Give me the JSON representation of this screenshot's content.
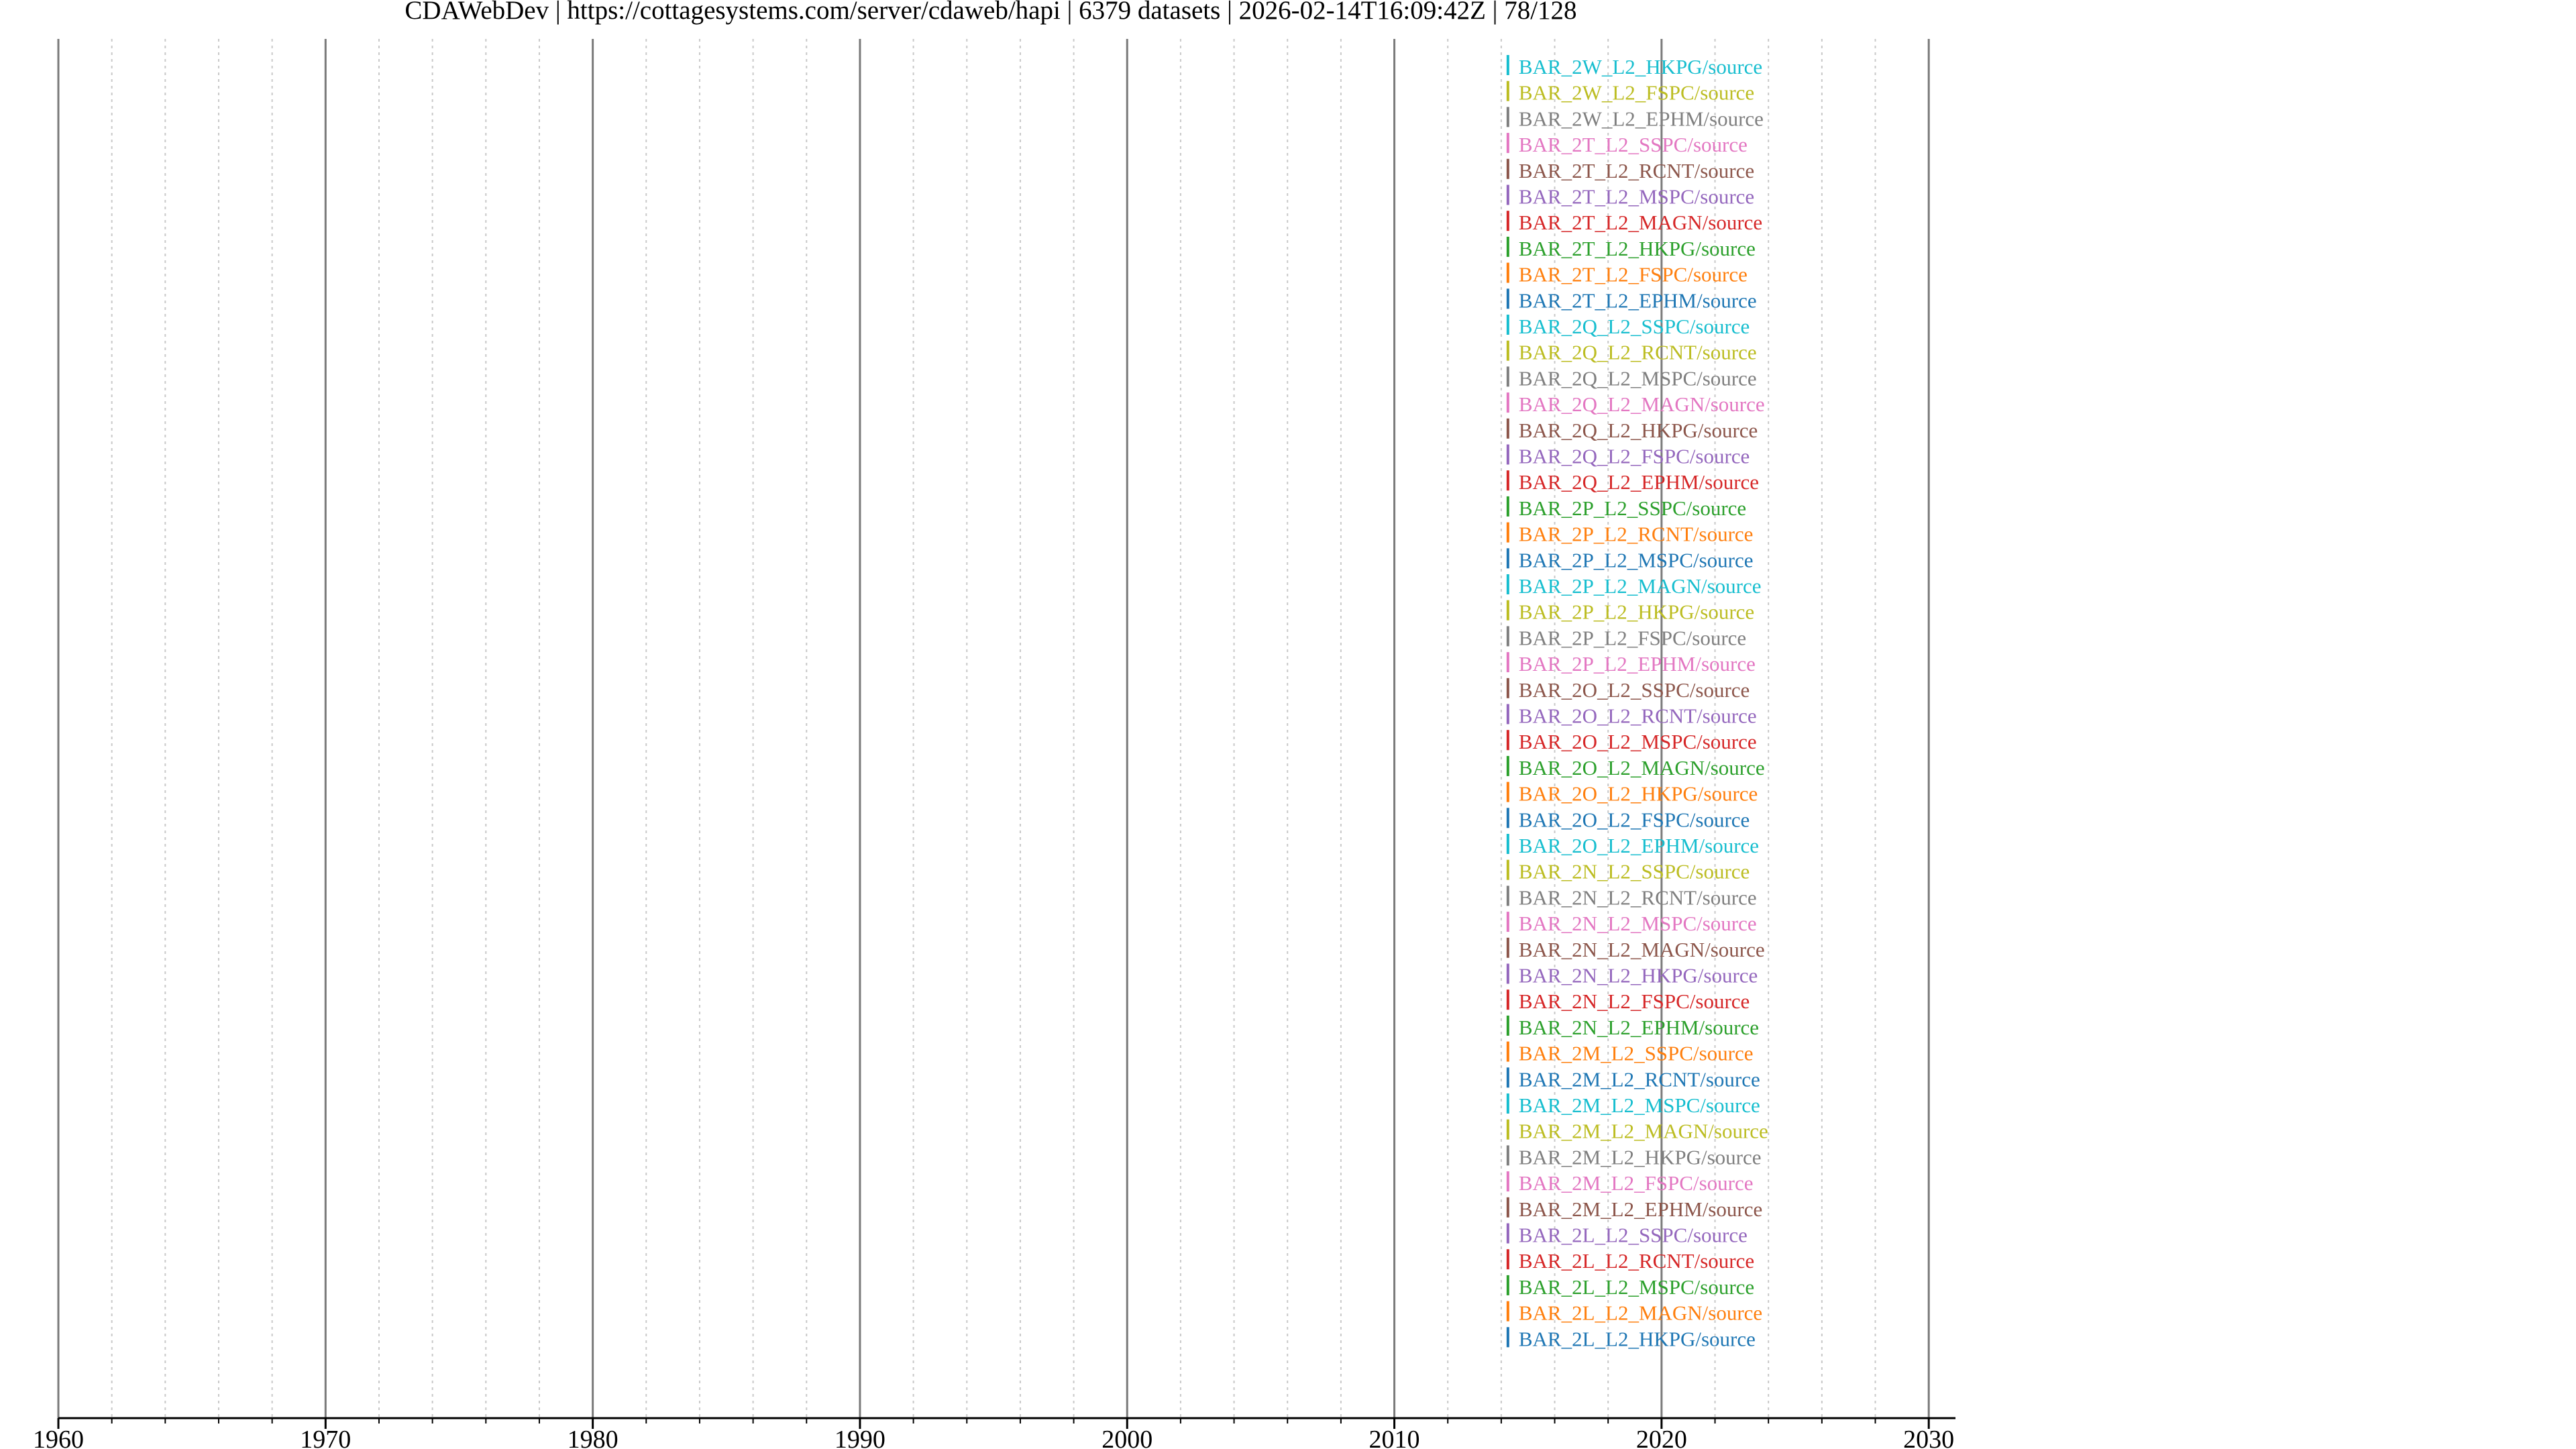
{
  "header": {
    "title": "CDAWebDev | https://cottagesystems.com/server/cdaweb/hapi | 6379 datasets | 2026-02-14T16:09:42Z | 78/128"
  },
  "chart_data": {
    "type": "timeline",
    "title": "CDAWebDev | https://cottagesystems.com/server/cdaweb/hapi | 6379 datasets | 2026-02-14T16:09:42Z | 78/128",
    "xlabel": "",
    "ylabel": "",
    "xlim": [
      1960,
      2031
    ],
    "x_major_ticks": [
      1960,
      1970,
      1980,
      1990,
      2000,
      2010,
      2020,
      2030
    ],
    "x_tick_labels": [
      "1960",
      "1970",
      "1980",
      "1990",
      "2000",
      "2010",
      "2020",
      "2030"
    ],
    "x_minor_step": 2,
    "grid_major": true,
    "grid_minor": true,
    "series": [
      {
        "name": "BAR_2W_L2_HKPG/source",
        "start": 2014.2,
        "end": 2014.3,
        "color": "#17becf"
      },
      {
        "name": "BAR_2W_L2_FSPC/source",
        "start": 2014.2,
        "end": 2014.3,
        "color": "#bcbd22"
      },
      {
        "name": "BAR_2W_L2_EPHM/source",
        "start": 2014.2,
        "end": 2014.3,
        "color": "#7f7f7f"
      },
      {
        "name": "BAR_2T_L2_SSPC/source",
        "start": 2014.2,
        "end": 2014.3,
        "color": "#e377c2"
      },
      {
        "name": "BAR_2T_L2_RCNT/source",
        "start": 2014.2,
        "end": 2014.3,
        "color": "#8c564b"
      },
      {
        "name": "BAR_2T_L2_MSPC/source",
        "start": 2014.2,
        "end": 2014.3,
        "color": "#9467bd"
      },
      {
        "name": "BAR_2T_L2_MAGN/source",
        "start": 2014.2,
        "end": 2014.3,
        "color": "#d62728"
      },
      {
        "name": "BAR_2T_L2_HKPG/source",
        "start": 2014.2,
        "end": 2014.3,
        "color": "#2ca02c"
      },
      {
        "name": "BAR_2T_L2_FSPC/source",
        "start": 2014.2,
        "end": 2014.3,
        "color": "#ff7f0e"
      },
      {
        "name": "BAR_2T_L2_EPHM/source",
        "start": 2014.2,
        "end": 2014.3,
        "color": "#1f77b4"
      },
      {
        "name": "BAR_2Q_L2_SSPC/source",
        "start": 2014.2,
        "end": 2014.3,
        "color": "#17becf"
      },
      {
        "name": "BAR_2Q_L2_RCNT/source",
        "start": 2014.2,
        "end": 2014.3,
        "color": "#bcbd22"
      },
      {
        "name": "BAR_2Q_L2_MSPC/source",
        "start": 2014.2,
        "end": 2014.3,
        "color": "#7f7f7f"
      },
      {
        "name": "BAR_2Q_L2_MAGN/source",
        "start": 2014.2,
        "end": 2014.3,
        "color": "#e377c2"
      },
      {
        "name": "BAR_2Q_L2_HKPG/source",
        "start": 2014.2,
        "end": 2014.3,
        "color": "#8c564b"
      },
      {
        "name": "BAR_2Q_L2_FSPC/source",
        "start": 2014.2,
        "end": 2014.3,
        "color": "#9467bd"
      },
      {
        "name": "BAR_2Q_L2_EPHM/source",
        "start": 2014.2,
        "end": 2014.3,
        "color": "#d62728"
      },
      {
        "name": "BAR_2P_L2_SSPC/source",
        "start": 2014.2,
        "end": 2014.3,
        "color": "#2ca02c"
      },
      {
        "name": "BAR_2P_L2_RCNT/source",
        "start": 2014.2,
        "end": 2014.3,
        "color": "#ff7f0e"
      },
      {
        "name": "BAR_2P_L2_MSPC/source",
        "start": 2014.2,
        "end": 2014.3,
        "color": "#1f77b4"
      },
      {
        "name": "BAR_2P_L2_MAGN/source",
        "start": 2014.2,
        "end": 2014.3,
        "color": "#17becf"
      },
      {
        "name": "BAR_2P_L2_HKPG/source",
        "start": 2014.2,
        "end": 2014.3,
        "color": "#bcbd22"
      },
      {
        "name": "BAR_2P_L2_FSPC/source",
        "start": 2014.2,
        "end": 2014.3,
        "color": "#7f7f7f"
      },
      {
        "name": "BAR_2P_L2_EPHM/source",
        "start": 2014.2,
        "end": 2014.3,
        "color": "#e377c2"
      },
      {
        "name": "BAR_2O_L2_SSPC/source",
        "start": 2014.2,
        "end": 2014.3,
        "color": "#8c564b"
      },
      {
        "name": "BAR_2O_L2_RCNT/source",
        "start": 2014.2,
        "end": 2014.3,
        "color": "#9467bd"
      },
      {
        "name": "BAR_2O_L2_MSPC/source",
        "start": 2014.2,
        "end": 2014.3,
        "color": "#d62728"
      },
      {
        "name": "BAR_2O_L2_MAGN/source",
        "start": 2014.2,
        "end": 2014.3,
        "color": "#2ca02c"
      },
      {
        "name": "BAR_2O_L2_HKPG/source",
        "start": 2014.2,
        "end": 2014.3,
        "color": "#ff7f0e"
      },
      {
        "name": "BAR_2O_L2_FSPC/source",
        "start": 2014.2,
        "end": 2014.3,
        "color": "#1f77b4"
      },
      {
        "name": "BAR_2O_L2_EPHM/source",
        "start": 2014.2,
        "end": 2014.3,
        "color": "#17becf"
      },
      {
        "name": "BAR_2N_L2_SSPC/source",
        "start": 2014.2,
        "end": 2014.3,
        "color": "#bcbd22"
      },
      {
        "name": "BAR_2N_L2_RCNT/source",
        "start": 2014.2,
        "end": 2014.3,
        "color": "#7f7f7f"
      },
      {
        "name": "BAR_2N_L2_MSPC/source",
        "start": 2014.2,
        "end": 2014.3,
        "color": "#e377c2"
      },
      {
        "name": "BAR_2N_L2_MAGN/source",
        "start": 2014.2,
        "end": 2014.3,
        "color": "#8c564b"
      },
      {
        "name": "BAR_2N_L2_HKPG/source",
        "start": 2014.2,
        "end": 2014.3,
        "color": "#9467bd"
      },
      {
        "name": "BAR_2N_L2_FSPC/source",
        "start": 2014.2,
        "end": 2014.3,
        "color": "#d62728"
      },
      {
        "name": "BAR_2N_L2_EPHM/source",
        "start": 2014.2,
        "end": 2014.3,
        "color": "#2ca02c"
      },
      {
        "name": "BAR_2M_L2_SSPC/source",
        "start": 2014.2,
        "end": 2014.3,
        "color": "#ff7f0e"
      },
      {
        "name": "BAR_2M_L2_RCNT/source",
        "start": 2014.2,
        "end": 2014.3,
        "color": "#1f77b4"
      },
      {
        "name": "BAR_2M_L2_MSPC/source",
        "start": 2014.2,
        "end": 2014.3,
        "color": "#17becf"
      },
      {
        "name": "BAR_2M_L2_MAGN/source",
        "start": 2014.2,
        "end": 2014.3,
        "color": "#bcbd22"
      },
      {
        "name": "BAR_2M_L2_HKPG/source",
        "start": 2014.2,
        "end": 2014.3,
        "color": "#7f7f7f"
      },
      {
        "name": "BAR_2M_L2_FSPC/source",
        "start": 2014.2,
        "end": 2014.3,
        "color": "#e377c2"
      },
      {
        "name": "BAR_2M_L2_EPHM/source",
        "start": 2014.2,
        "end": 2014.3,
        "color": "#8c564b"
      },
      {
        "name": "BAR_2L_L2_SSPC/source",
        "start": 2014.2,
        "end": 2014.3,
        "color": "#9467bd"
      },
      {
        "name": "BAR_2L_L2_RCNT/source",
        "start": 2014.2,
        "end": 2014.3,
        "color": "#d62728"
      },
      {
        "name": "BAR_2L_L2_MSPC/source",
        "start": 2014.2,
        "end": 2014.3,
        "color": "#2ca02c"
      },
      {
        "name": "BAR_2L_L2_MAGN/source",
        "start": 2014.2,
        "end": 2014.3,
        "color": "#ff7f0e"
      },
      {
        "name": "BAR_2L_L2_HKPG/source",
        "start": 2014.2,
        "end": 2014.3,
        "color": "#1f77b4"
      }
    ]
  }
}
